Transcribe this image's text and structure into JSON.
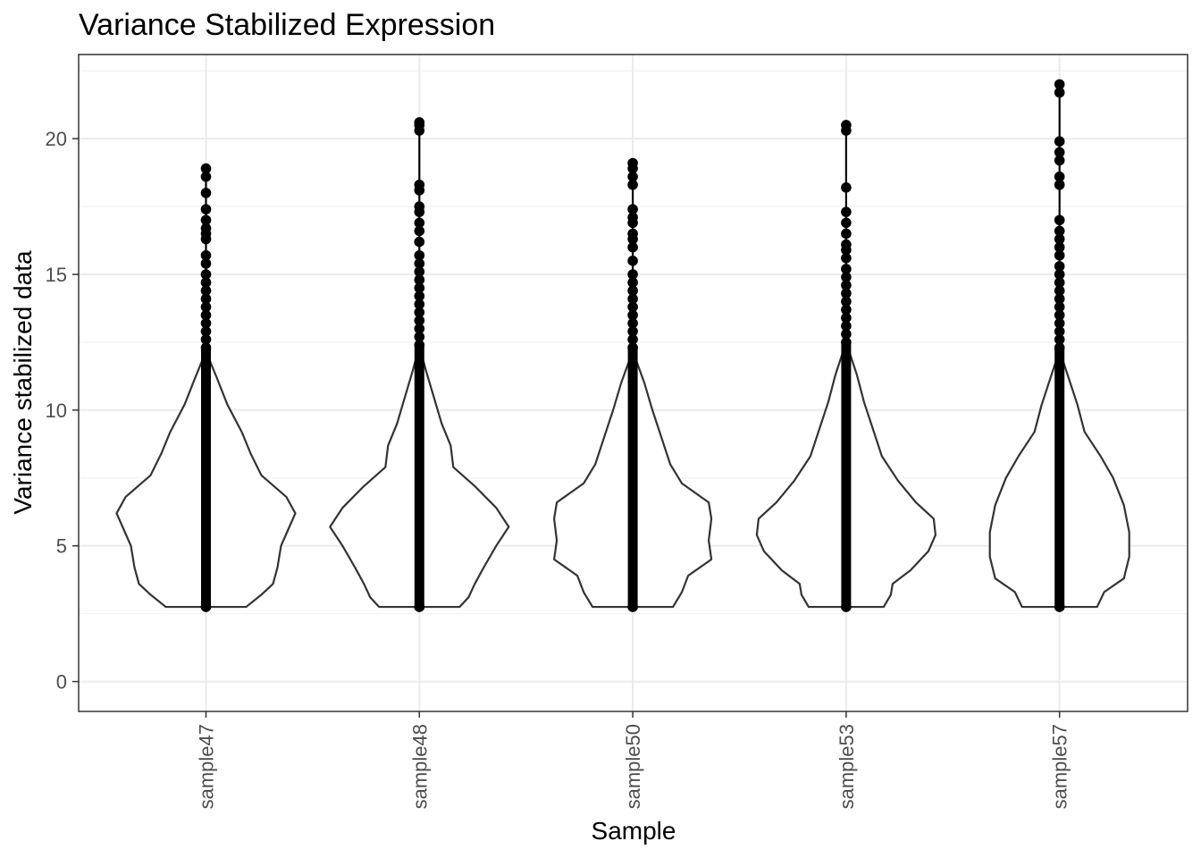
{
  "chart_data": {
    "type": "violin",
    "title": "Variance Stabilized Expression",
    "xlabel": "Sample",
    "ylabel": "Variance stabilized data",
    "ylim": [
      -1.1,
      23.1
    ],
    "yticks": [
      0,
      5,
      10,
      15,
      20
    ],
    "grid": true,
    "legend": "none",
    "colors": {
      "violin": "#333333",
      "points": "#000000",
      "grid_major": "#ebebeb",
      "grid_minor": "#f2f2f2",
      "panel_border": "#333333"
    },
    "categories": [
      "sample47",
      "sample48",
      "sample50",
      "sample53",
      "sample57"
    ],
    "series": [
      {
        "category": "sample47",
        "min": 2.75,
        "max": 18.9,
        "density_profile": [
          [
            2.75,
            0.45
          ],
          [
            3.2,
            0.62
          ],
          [
            3.6,
            0.75
          ],
          [
            4.2,
            0.8
          ],
          [
            5.0,
            0.84
          ],
          [
            5.6,
            0.92
          ],
          [
            6.2,
            1.0
          ],
          [
            6.8,
            0.9
          ],
          [
            7.6,
            0.62
          ],
          [
            8.4,
            0.5
          ],
          [
            9.2,
            0.4
          ],
          [
            10.2,
            0.24
          ],
          [
            11.2,
            0.12
          ],
          [
            12.0,
            0.02
          ],
          [
            12.3,
            0.0
          ]
        ],
        "outlier_points": [
          12.3,
          12.6,
          12.9,
          13.2,
          13.5,
          13.8,
          14.1,
          14.4,
          14.7,
          15.0,
          15.4,
          15.7,
          16.3,
          16.5,
          16.7,
          17.0,
          17.4,
          18.0,
          18.6,
          18.9
        ]
      },
      {
        "category": "sample48",
        "min": 2.75,
        "max": 20.6,
        "density_profile": [
          [
            2.75,
            0.45
          ],
          [
            3.1,
            0.55
          ],
          [
            3.6,
            0.62
          ],
          [
            4.2,
            0.72
          ],
          [
            5.0,
            0.86
          ],
          [
            5.7,
            1.0
          ],
          [
            6.4,
            0.86
          ],
          [
            7.2,
            0.62
          ],
          [
            7.9,
            0.38
          ],
          [
            8.7,
            0.35
          ],
          [
            9.5,
            0.25
          ],
          [
            10.5,
            0.16
          ],
          [
            11.5,
            0.07
          ],
          [
            12.4,
            0.0
          ]
        ],
        "outlier_points": [
          12.4,
          12.7,
          13.0,
          13.3,
          13.6,
          13.9,
          14.2,
          14.5,
          14.8,
          15.1,
          15.4,
          15.7,
          16.2,
          16.6,
          16.9,
          17.3,
          17.5,
          18.1,
          18.3,
          20.3,
          20.5,
          20.6
        ]
      },
      {
        "category": "sample50",
        "min": 2.75,
        "max": 19.1,
        "density_profile": [
          [
            2.75,
            0.45
          ],
          [
            3.3,
            0.55
          ],
          [
            3.9,
            0.62
          ],
          [
            4.5,
            0.88
          ],
          [
            5.2,
            0.85
          ],
          [
            6.0,
            0.88
          ],
          [
            6.6,
            0.85
          ],
          [
            7.3,
            0.55
          ],
          [
            8.0,
            0.42
          ],
          [
            9.0,
            0.32
          ],
          [
            10.0,
            0.22
          ],
          [
            11.0,
            0.13
          ],
          [
            12.0,
            0.02
          ],
          [
            12.3,
            0.0
          ]
        ],
        "outlier_points": [
          12.3,
          12.6,
          12.9,
          13.2,
          13.5,
          13.8,
          14.1,
          14.4,
          14.7,
          15.0,
          15.5,
          16.0,
          16.3,
          16.5,
          16.9,
          17.1,
          17.4,
          18.3,
          18.6,
          18.9,
          19.1
        ]
      },
      {
        "category": "sample53",
        "min": 2.75,
        "max": 20.5,
        "density_profile": [
          [
            2.75,
            0.42
          ],
          [
            3.2,
            0.5
          ],
          [
            3.6,
            0.52
          ],
          [
            4.1,
            0.72
          ],
          [
            4.8,
            0.92
          ],
          [
            5.4,
            1.0
          ],
          [
            6.0,
            0.98
          ],
          [
            6.6,
            0.78
          ],
          [
            7.4,
            0.58
          ],
          [
            8.3,
            0.4
          ],
          [
            9.3,
            0.3
          ],
          [
            10.3,
            0.2
          ],
          [
            11.3,
            0.12
          ],
          [
            12.3,
            0.02
          ],
          [
            12.5,
            0.0
          ]
        ],
        "outlier_points": [
          12.5,
          12.8,
          13.1,
          13.4,
          13.7,
          14.0,
          14.3,
          14.6,
          14.9,
          15.2,
          15.6,
          15.9,
          16.1,
          16.5,
          16.9,
          17.3,
          18.2,
          20.3,
          20.5
        ]
      },
      {
        "category": "sample57",
        "min": 2.75,
        "max": 22.0,
        "density_profile": [
          [
            2.75,
            0.42
          ],
          [
            3.3,
            0.5
          ],
          [
            3.8,
            0.72
          ],
          [
            4.6,
            0.78
          ],
          [
            5.5,
            0.78
          ],
          [
            6.5,
            0.72
          ],
          [
            7.5,
            0.6
          ],
          [
            8.3,
            0.46
          ],
          [
            9.2,
            0.28
          ],
          [
            10.2,
            0.2
          ],
          [
            11.2,
            0.1
          ],
          [
            12.0,
            0.02
          ],
          [
            12.3,
            0.0
          ]
        ],
        "outlier_points": [
          12.3,
          12.6,
          12.9,
          13.2,
          13.5,
          13.8,
          14.1,
          14.4,
          14.7,
          15.0,
          15.3,
          15.7,
          16.0,
          16.3,
          16.6,
          17.0,
          18.3,
          18.6,
          19.2,
          19.5,
          19.9,
          21.7,
          22.0
        ]
      }
    ]
  }
}
